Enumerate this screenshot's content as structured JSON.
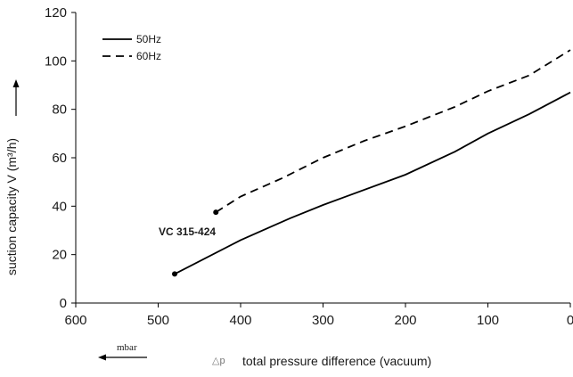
{
  "chart_data": {
    "type": "line",
    "title": "",
    "xlabel": "total pressure difference (vacuum)",
    "xlabel_symbol": "△p",
    "x_unit_label": "mbar",
    "ylabel": "suction capacity V (m³/h)",
    "xlim": [
      600,
      0
    ],
    "ylim": [
      0,
      120
    ],
    "x_ticks": [
      "600",
      "500",
      "400",
      "300",
      "200",
      "100",
      "0"
    ],
    "y_ticks": [
      "0",
      "20",
      "40",
      "60",
      "80",
      "100",
      "120"
    ],
    "grid": false,
    "legend_position": "top-left",
    "series": [
      {
        "name": "50Hz",
        "line_style": "solid",
        "color": "#000000",
        "x": [
          480,
          400,
          340,
          300,
          200,
          140,
          100,
          50,
          0
        ],
        "y": [
          12,
          26,
          35,
          40.5,
          53,
          62.5,
          70,
          78,
          87
        ]
      },
      {
        "name": "60Hz",
        "line_style": "dashed",
        "color": "#000000",
        "x": [
          430,
          400,
          350,
          300,
          250,
          200,
          140,
          100,
          50,
          0
        ],
        "y": [
          37.5,
          44,
          51.5,
          60,
          67,
          73,
          81,
          87.5,
          94,
          104.5
        ]
      }
    ],
    "annotations": [
      {
        "text": "VC 315-424"
      }
    ]
  }
}
